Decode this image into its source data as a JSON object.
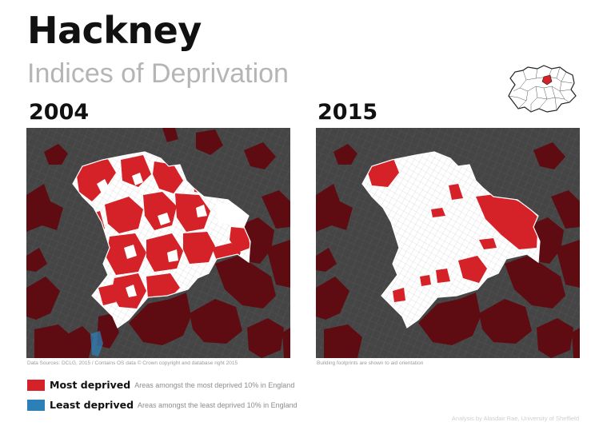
{
  "title": "Hackney",
  "subtitle": "Indices of Deprivation",
  "colors": {
    "most_deprived": "#d42228",
    "least_deprived": "#2d7fb7",
    "context_deprived": "#5e0c12",
    "base": "#454545",
    "area": "#ffffff"
  },
  "panels": [
    {
      "year": "2004",
      "note": "Data Sources: DCLG, 2015 / Contains OS data © Crown copyright and database right 2015"
    },
    {
      "year": "2015",
      "note": "Building footprints are shown to aid orientation"
    }
  ],
  "legend": [
    {
      "label": "Most deprived",
      "description": "Areas amongst the most deprived 10% in England",
      "color": "#d42228"
    },
    {
      "label": "Least deprived",
      "description": "Areas amongst the least deprived 10% in England",
      "color": "#2d7fb7"
    }
  ],
  "credit": "Analysis by Alasdair Rae, University of Sheffield"
}
